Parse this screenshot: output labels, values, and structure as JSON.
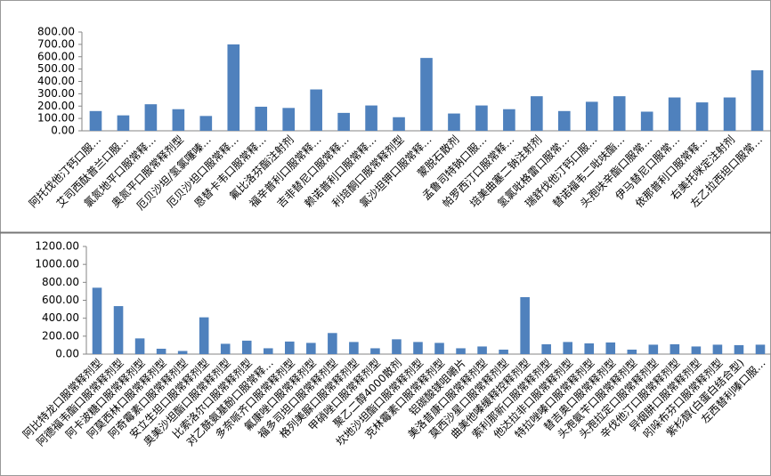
{
  "chart_data": [
    {
      "type": "bar",
      "color": "#4f81bd",
      "categories": [
        "阿托伐他汀钙口服…",
        "艾司西酞普兰口服…",
        "氯氮地平口服常释…",
        "奥氮平口服常释剂型",
        "厄贝沙坦/氢氯噻嗪…",
        "厄贝沙坦口服常释…",
        "恩替卡韦口服常释…",
        "氟比洛芬酯注射剂",
        "福辛普利口服常释…",
        "吉非替尼口服常释…",
        "赖诺普利口服常释…",
        "利培酮口服常释剂型",
        "氯沙坦钾口服常释…",
        "蒙脱石散剂",
        "孟鲁司特钠口服…",
        "帕罗西汀口服常释…",
        "培美曲塞二钠注射剂",
        "氢氯吡格雷口服常…",
        "瑞舒伐他汀钙口服…",
        "替诺福韦二吡呋酯…",
        "头孢呋辛酯口服常…",
        "伊马替尼口服常…",
        "依那普利口服常释…",
        "右美托咪定注射剂",
        "左乙拉西坦口服常…"
      ],
      "values": [
        160,
        125,
        215,
        175,
        120,
        700,
        195,
        185,
        335,
        145,
        205,
        110,
        590,
        140,
        205,
        175,
        280,
        160,
        235,
        280,
        155,
        270,
        230,
        270,
        490
      ],
      "ylim": [
        0,
        800
      ],
      "yticks": [
        {
          "value": 0,
          "label": "0.00"
        },
        {
          "value": 100,
          "label": "100.00"
        },
        {
          "value": 200,
          "label": "200.00"
        },
        {
          "value": 300,
          "label": "300.00"
        },
        {
          "value": 400,
          "label": "400.00"
        },
        {
          "value": 500,
          "label": "500.00"
        },
        {
          "value": 600,
          "label": "600.00"
        },
        {
          "value": 700,
          "label": "700.00"
        },
        {
          "value": 800,
          "label": "800.00"
        }
      ]
    },
    {
      "type": "bar",
      "color": "#4f81bd",
      "categories": [
        "阿比特龙口服常释剂型",
        "阿德福韦酯口服常释剂型",
        "阿卡波糖口服常释剂型",
        "阿莫西林口服常释剂型",
        "阿奇霉素口服常释剂型",
        "安立生坦口服常释剂型",
        "奥美沙坦酯口服常释剂型",
        "比索洛尔口服常释剂型",
        "对乙酰氨基酚口服常释…",
        "多奈哌齐口服常释剂型",
        "氟康唑口服常释剂型",
        "福多司坦口服常释剂型",
        "格列美脲口服常释剂型",
        "甲硝唑口服常释剂型",
        "聚乙二醇4000散剂",
        "坎地沙坦酯口服常释剂型",
        "克林霉素口服常释剂型",
        "铝碳酸镁咀嚼片",
        "美洛昔康口服常释剂型",
        "莫西沙星口服常释剂型",
        "曲美他嗪缓释控释剂型",
        "索利那新口服常释剂型",
        "他达拉非口服常释剂型",
        "特拉唑嗪口服常释剂型",
        "替吉奥口服常释剂型",
        "头孢氨苄口服常释剂型",
        "头孢拉定口服常释剂型",
        "辛伐他汀口服常释剂型",
        "异烟肼口服常释剂型",
        "吲哚布芬口服常释剂型",
        "紫杉醇(白蛋白结合型)",
        "左西替利嗪口服…"
      ],
      "values": [
        740,
        535,
        175,
        60,
        35,
        410,
        115,
        150,
        65,
        140,
        125,
        235,
        135,
        65,
        165,
        135,
        125,
        65,
        85,
        50,
        635,
        110,
        135,
        120,
        130,
        50,
        105,
        110,
        85,
        105,
        100,
        105
      ],
      "ylim": [
        0,
        1200
      ],
      "yticks": [
        {
          "value": 0,
          "label": "0.00"
        },
        {
          "value": 200,
          "label": "200.00"
        },
        {
          "value": 400,
          "label": "400.00"
        },
        {
          "value": 600,
          "label": "600.00"
        },
        {
          "value": 800,
          "label": "800.00"
        },
        {
          "value": 1000,
          "label": "1000.00"
        },
        {
          "value": 1200,
          "label": "1200.00"
        }
      ]
    }
  ]
}
